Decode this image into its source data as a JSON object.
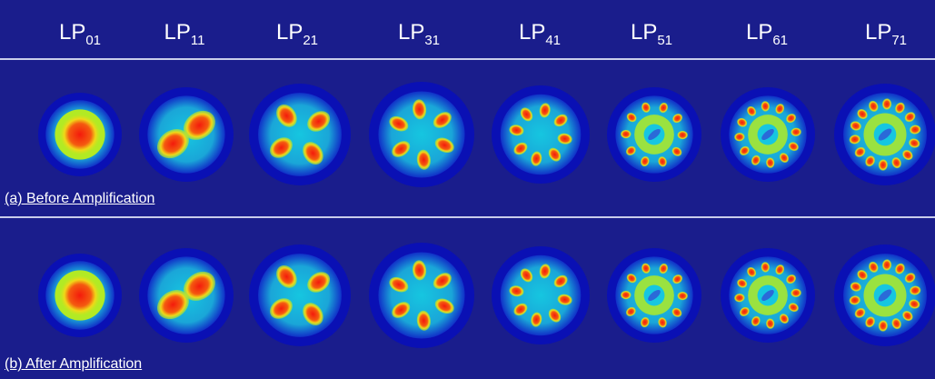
{
  "header": {
    "modes": [
      {
        "base": "LP",
        "sub": "01"
      },
      {
        "base": "LP",
        "sub": "11"
      },
      {
        "base": "LP",
        "sub": "21"
      },
      {
        "base": "LP",
        "sub": "31"
      },
      {
        "base": "LP",
        "sub": "41"
      },
      {
        "base": "LP",
        "sub": "51"
      },
      {
        "base": "LP",
        "sub": "61"
      },
      {
        "base": "LP",
        "sub": "71"
      }
    ]
  },
  "rows": [
    {
      "caption": "(a) Before Amplification"
    },
    {
      "caption": "(b) After Amplification"
    }
  ],
  "colors": {
    "background": "#1a1d8c",
    "ring": "#0a10b4",
    "field": "#16c6e0",
    "mid": "#b2ea24",
    "peak": "#f41a0c"
  }
}
